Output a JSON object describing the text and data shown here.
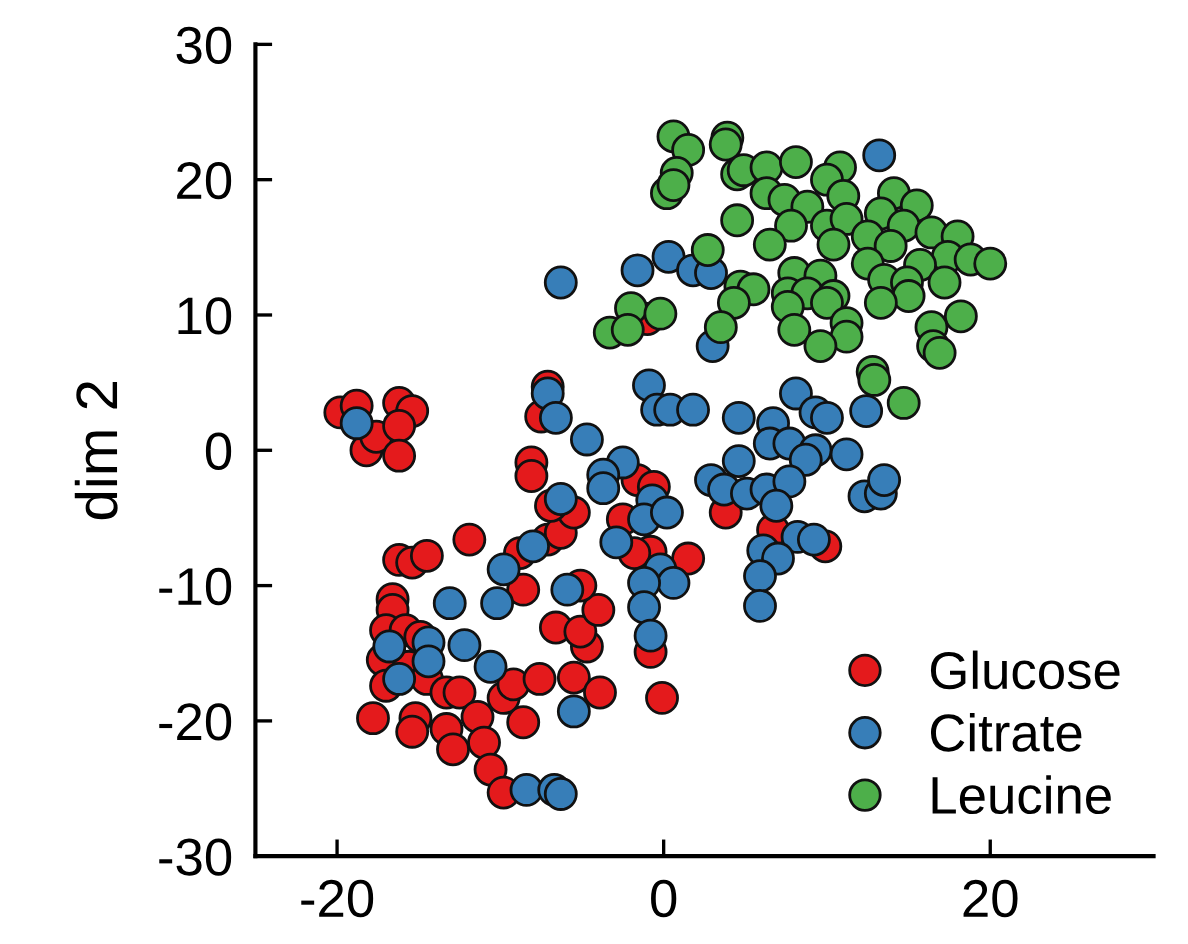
{
  "chart_data": {
    "type": "scatter",
    "ylabel": "dim 2",
    "xlim": [
      -25,
      30
    ],
    "ylim": [
      -30,
      30
    ],
    "xticks": [
      -20,
      0,
      20
    ],
    "yticks": [
      -30,
      -20,
      -10,
      0,
      10,
      20,
      30
    ],
    "grid": false,
    "legend": "bottom right",
    "marker": "circle",
    "series": [
      {
        "name": "Glucose",
        "color": "#e41a1c",
        "x": [
          -19.8,
          -18.8,
          -18.2,
          -17.6,
          -16.2,
          -15.4,
          -16.2,
          -16.2,
          -7.1,
          -7.5,
          -8.1,
          -8.1,
          -11.9,
          -16.2,
          -15.4,
          -14.5,
          -16.6,
          -16.6,
          -17.0,
          -15.8,
          -14.9,
          -17.2,
          -15.6,
          -17.0,
          -14.5,
          -13.3,
          -12.5,
          -17.8,
          -15.2,
          -15.4,
          -13.3,
          -12.9,
          -11.4,
          -11.0,
          -10.6,
          -9.8,
          -8.6,
          -9.8,
          -9.2,
          -7.6,
          -5.5,
          -3.9,
          -4.7,
          -6.6,
          -5.1,
          -4.0,
          -5.1,
          -8.6,
          -8.8,
          -7.1,
          -6.3,
          -5.5,
          -6.9,
          -1.6,
          -0.6,
          -2.5,
          -0.8,
          1.5,
          -1.8,
          -0.8,
          -0.1,
          -1.0,
          3.8,
          6.7,
          9.9
        ],
        "values": [
          2.8,
          3.3,
          0.0,
          1.0,
          3.5,
          2.9,
          1.8,
          -0.4,
          4.7,
          2.5,
          -0.9,
          -1.9,
          -6.6,
          -8.1,
          -8.3,
          -7.8,
          -11.0,
          -11.8,
          -13.3,
          -13.3,
          -13.8,
          -15.5,
          -16.0,
          -17.4,
          -16.9,
          -17.9,
          -17.9,
          -19.8,
          -19.8,
          -20.8,
          -20.6,
          -22.1,
          -19.7,
          -21.6,
          -23.6,
          -25.3,
          -20.1,
          -18.3,
          -17.3,
          -16.9,
          -16.8,
          -17.9,
          -14.5,
          -13.1,
          -13.4,
          -11.8,
          -10.0,
          -10.3,
          -7.6,
          -6.6,
          -6.1,
          -4.6,
          -4.1,
          -2.2,
          -2.7,
          -5.1,
          -7.5,
          -8.0,
          -7.6,
          -14.9,
          -18.3,
          9.7,
          -4.6,
          -5.9,
          -7.1
        ]
      },
      {
        "name": "Citrate",
        "color": "#377eb8",
        "x": [
          13.2,
          -6.3,
          -1.6,
          0.3,
          1.8,
          2.9,
          3.0,
          -0.9,
          -0.4,
          0.4,
          1.8,
          4.6,
          8.1,
          9.3,
          10.0,
          12.4,
          6.7,
          6.5,
          7.7,
          9.3,
          8.7,
          11.2,
          4.6,
          -4.7,
          -2.5,
          -3.7,
          -3.7,
          2.9,
          3.7,
          5.1,
          6.3,
          7.7,
          6.9,
          12.3,
          13.3,
          13.5,
          -0.7,
          -1.2,
          0.2,
          -6.3,
          -7.1,
          -6.6,
          -2.9,
          -8.0,
          -0.2,
          0.6,
          -1.2,
          -1.2,
          -0.8,
          -5.5,
          -5.9,
          -9.8,
          -10.2,
          -13.1,
          8.2,
          9.2,
          6.1,
          7.0,
          5.9,
          5.9,
          -16.8,
          -16.2,
          -14.4,
          -14.4,
          -12.2,
          -10.6,
          -8.4,
          -6.7,
          -6.3,
          -18.8
        ],
        "values": [
          21.8,
          12.4,
          13.3,
          14.3,
          13.3,
          13.1,
          7.7,
          4.8,
          3.0,
          3.0,
          3.0,
          2.4,
          4.2,
          2.8,
          2.4,
          2.9,
          2.0,
          0.5,
          0.5,
          0.0,
          -0.7,
          -0.3,
          -0.8,
          0.8,
          -0.9,
          -1.8,
          -2.8,
          -2.2,
          -2.9,
          -3.2,
          -2.9,
          -2.3,
          -4.1,
          -3.4,
          -3.2,
          -2.2,
          -3.7,
          -5.1,
          -4.6,
          -3.6,
          4.2,
          2.4,
          -6.8,
          -7.1,
          -8.8,
          -9.8,
          -9.8,
          -11.6,
          -13.7,
          -19.3,
          -10.3,
          -8.8,
          -11.3,
          -11.3,
          -6.4,
          -6.6,
          -7.4,
          -8.0,
          -9.3,
          -11.5,
          -14.5,
          -16.9,
          -14.2,
          -15.6,
          -14.4,
          -16.0,
          -25.1,
          -25.1,
          -25.4,
          2.0
        ]
      },
      {
        "name": "Leucine",
        "color": "#4daf4a",
        "x": [
          0.6,
          3.9,
          1.5,
          3.8,
          0.8,
          0.2,
          0.6,
          4.5,
          4.9,
          6.3,
          8.1,
          10.8,
          10.0,
          6.3,
          7.4,
          8.8,
          11.0,
          14.1,
          15.5,
          13.3,
          4.5,
          7.8,
          10.0,
          11.2,
          12.5,
          14.7,
          16.4,
          18.0,
          6.5,
          10.4,
          13.9,
          2.7,
          17.4,
          18.8,
          20.0,
          12.5,
          15.7,
          8.0,
          9.6,
          13.5,
          14.9,
          17.2,
          4.7,
          5.5,
          7.6,
          8.8,
          10.4,
          15.0,
          4.3,
          7.6,
          10.0,
          13.3,
          -2.0,
          -0.2,
          18.2,
          3.5,
          16.4,
          -3.3,
          -2.2,
          8.0,
          11.2,
          11.2,
          9.6,
          16.5,
          16.9,
          12.8,
          12.9,
          14.7
        ],
        "values": [
          23.2,
          23.1,
          22.2,
          22.6,
          20.5,
          19.0,
          19.6,
          20.4,
          20.7,
          20.9,
          21.3,
          20.9,
          20.0,
          19.0,
          18.5,
          18.0,
          18.8,
          19.0,
          18.1,
          17.5,
          17.0,
          16.6,
          16.6,
          17.1,
          15.8,
          16.6,
          16.1,
          15.8,
          15.2,
          15.2,
          15.1,
          14.8,
          14.3,
          14.1,
          13.8,
          13.8,
          13.7,
          13.1,
          12.9,
          12.6,
          12.4,
          12.4,
          12.1,
          11.9,
          11.6,
          11.6,
          11.4,
          11.4,
          10.9,
          10.6,
          10.9,
          10.9,
          10.5,
          10.1,
          9.9,
          9.1,
          9.1,
          8.7,
          8.9,
          8.9,
          9.4,
          8.4,
          7.7,
          7.7,
          7.2,
          5.8,
          5.2,
          3.5
        ]
      }
    ]
  }
}
